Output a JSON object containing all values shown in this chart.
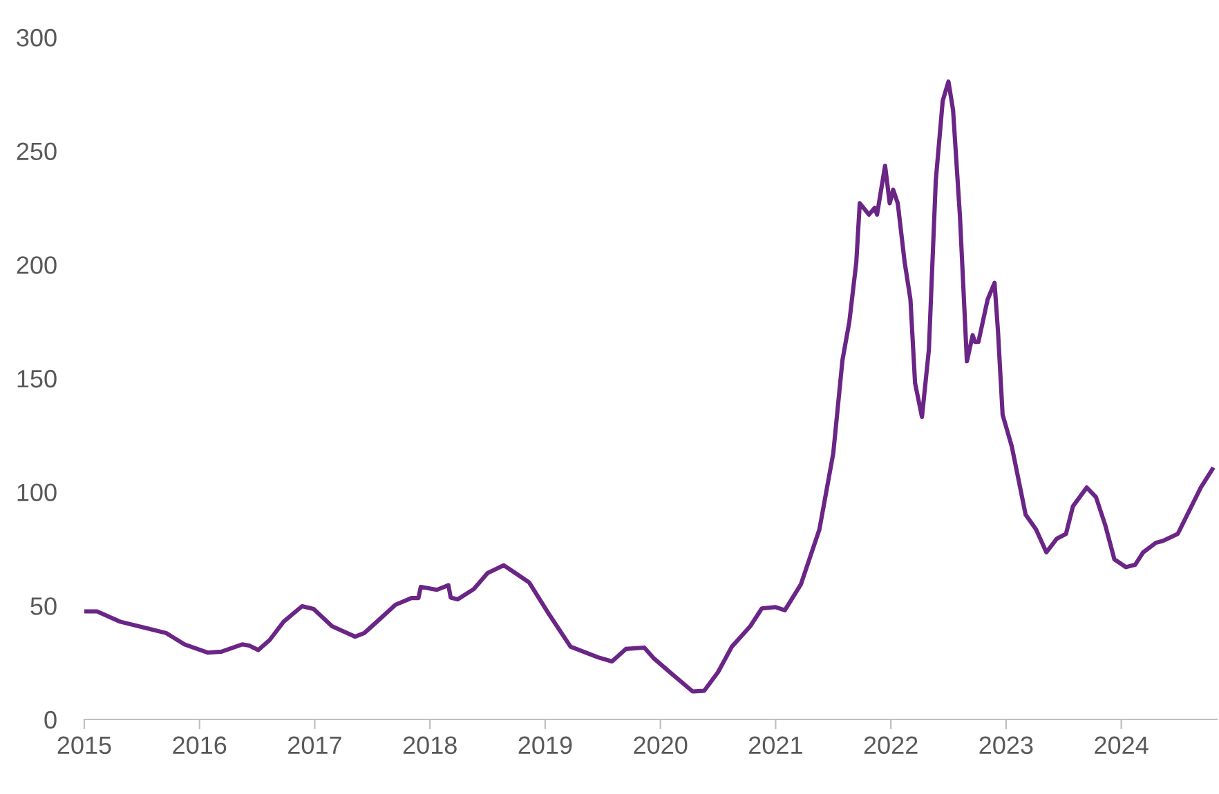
{
  "chart_data": {
    "type": "line",
    "x": [
      2015.0,
      2015.11,
      2015.31,
      2015.55,
      2015.71,
      2015.87,
      2016.07,
      2016.19,
      2016.37,
      2016.43,
      2016.51,
      2016.61,
      2016.73,
      2016.89,
      2016.99,
      2017.15,
      2017.35,
      2017.43,
      2017.54,
      2017.7,
      2017.84,
      2017.9,
      2017.92,
      2018.06,
      2018.16,
      2018.18,
      2018.24,
      2018.38,
      2018.5,
      2018.64,
      2018.74,
      2018.86,
      2019.02,
      2019.22,
      2019.46,
      2019.58,
      2019.7,
      2019.86,
      2019.94,
      2020.1,
      2020.28,
      2020.38,
      2020.5,
      2020.62,
      2020.78,
      2020.88,
      2021.0,
      2021.08,
      2021.22,
      2021.38,
      2021.5,
      2021.58,
      2021.64,
      2021.7,
      2021.73,
      2021.81,
      2021.86,
      2021.88,
      2021.95,
      2021.99,
      2022.02,
      2022.06,
      2022.12,
      2022.17,
      2022.21,
      2022.27,
      2022.33,
      2022.39,
      2022.45,
      2022.5,
      2022.54,
      2022.6,
      2022.66,
      2022.71,
      2022.73,
      2022.76,
      2022.84,
      2022.9,
      2022.93,
      2022.97,
      2023.05,
      2023.17,
      2023.26,
      2023.35,
      2023.44,
      2023.52,
      2023.58,
      2023.7,
      2023.78,
      2023.86,
      2023.94,
      2024.04,
      2024.12,
      2024.19,
      2024.3,
      2024.36,
      2024.49,
      2024.69,
      2024.79
    ],
    "series": [
      {
        "color": "#6a2586",
        "values": [
          47.5,
          47.5,
          43,
          40,
          38,
          33,
          29.4,
          29.8,
          33,
          32.5,
          30.5,
          35,
          43,
          49.8,
          48.6,
          41,
          36.4,
          38,
          43,
          50.4,
          53.4,
          53.4,
          58.3,
          57,
          59,
          53.6,
          52.8,
          57.3,
          64.4,
          67.8,
          64.4,
          60.3,
          47.3,
          32,
          27.3,
          25.5,
          31,
          31.6,
          27,
          20,
          12.3,
          12.6,
          20.8,
          32,
          41,
          48.8,
          49.4,
          48,
          59.5,
          83.6,
          117,
          158,
          175,
          201,
          227,
          222,
          225,
          222,
          243.5,
          227,
          233,
          227,
          201,
          184.7,
          148,
          133,
          162.6,
          237,
          272,
          280.5,
          268,
          221,
          157.5,
          169,
          166,
          166,
          184.7,
          192,
          170.6,
          134,
          120,
          90,
          83.6,
          73.5,
          79.5,
          81.6,
          93.7,
          102,
          97.8,
          85.6,
          70.4,
          67,
          68,
          73.5,
          77.7,
          78.5,
          81.6,
          102,
          110
        ]
      }
    ],
    "xlim": [
      2015,
      2024.83
    ],
    "xticks": [
      2015,
      2016,
      2017,
      2018,
      2019,
      2020,
      2021,
      2022,
      2023,
      2024
    ],
    "ylim": [
      0,
      300
    ],
    "yticks": [
      0,
      50,
      100,
      150,
      200,
      250,
      300
    ],
    "grid": false,
    "legend": false,
    "marker": "none",
    "line_style": "solid"
  }
}
